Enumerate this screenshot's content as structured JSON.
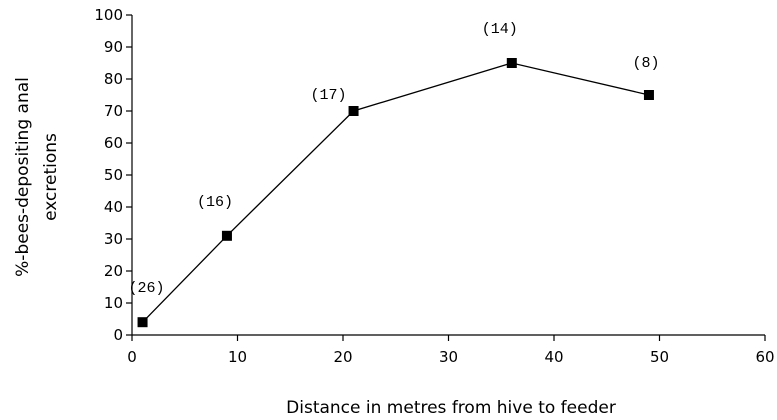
{
  "chart_data": {
    "type": "line",
    "title": "",
    "xlabel": "Distance in metres from hive to feeder",
    "ylabel_lines": [
      "%-bees-depositing anal",
      "excretions"
    ],
    "xlim": [
      0,
      60
    ],
    "ylim": [
      0,
      100
    ],
    "x_ticks": [
      0,
      10,
      20,
      30,
      40,
      50,
      60
    ],
    "y_ticks": [
      0,
      10,
      20,
      30,
      40,
      50,
      60,
      70,
      80,
      90,
      100
    ],
    "grid": false,
    "legend": "none",
    "series": [
      {
        "marker": "square",
        "color": "#000000",
        "points": [
          {
            "x": 1,
            "y": 4,
            "label": "(26)"
          },
          {
            "x": 9,
            "y": 31,
            "label": "(16)"
          },
          {
            "x": 21,
            "y": 70,
            "label": "(17)"
          },
          {
            "x": 36,
            "y": 85,
            "label": "(14)"
          },
          {
            "x": 49,
            "y": 75,
            "label": "(8)"
          }
        ]
      }
    ]
  }
}
